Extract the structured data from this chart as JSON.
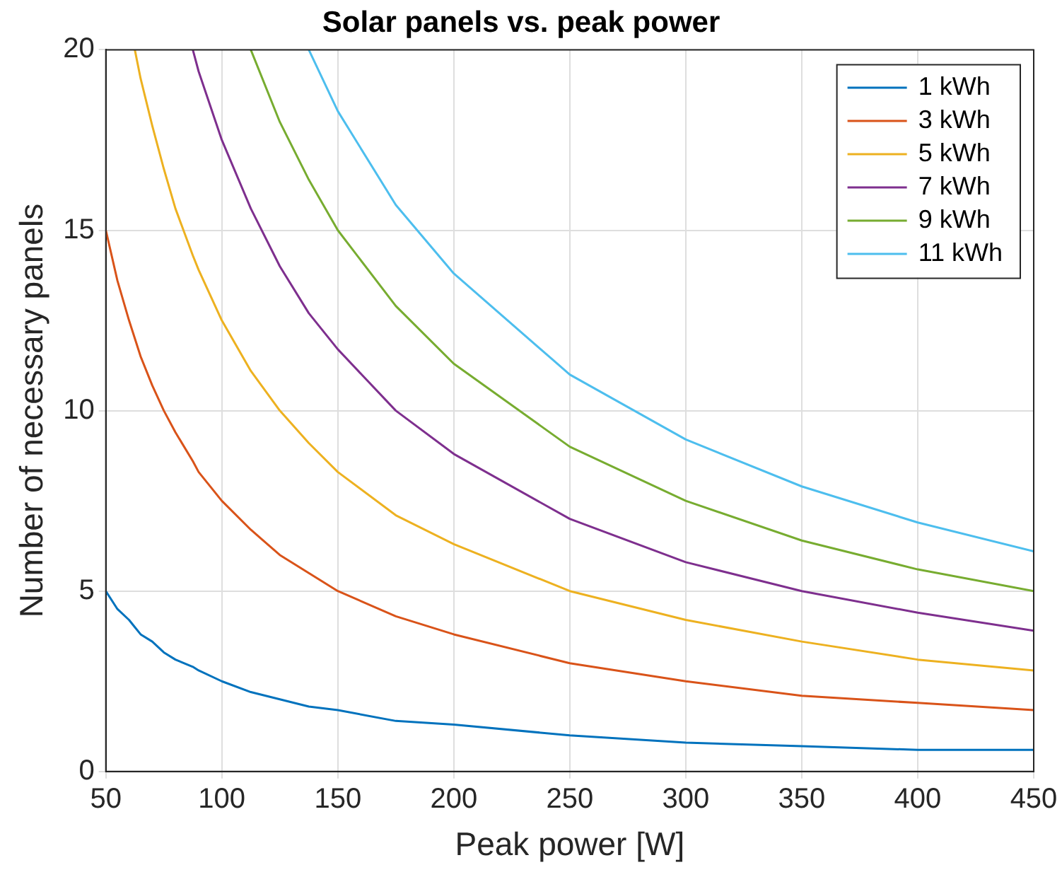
{
  "chart_data": {
    "type": "line",
    "title": "Solar panels vs. peak power",
    "xlabel": "Peak power [W]",
    "ylabel": "Number of necessary panels",
    "xlim": [
      50,
      450
    ],
    "xticks": [
      50,
      100,
      150,
      200,
      250,
      300,
      350,
      400,
      450
    ],
    "ylim": [
      0,
      20
    ],
    "yticks": [
      0,
      5,
      10,
      15,
      20
    ],
    "grid": true,
    "legend": "top right",
    "marker": "none",
    "line_style": "solid",
    "series": [
      {
        "name": "1 kWh",
        "color": "#0072bd",
        "x": [
          50,
          55,
          60,
          62.5,
          65,
          70,
          75,
          80,
          87.5,
          90,
          100,
          112.5,
          125,
          137.5,
          150,
          175,
          200,
          250,
          300,
          350,
          400,
          450
        ],
        "values": [
          5,
          4.5,
          4.2,
          4,
          3.8,
          3.6,
          3.3,
          3.1,
          2.9,
          2.8,
          2.5,
          2.2,
          2,
          1.8,
          1.7,
          1.4,
          1.3,
          1,
          0.8,
          0.7,
          0.6,
          0.6
        ]
      },
      {
        "name": "3 kWh",
        "color": "#d95319",
        "x": [
          50,
          55,
          60,
          62.5,
          65,
          70,
          75,
          80,
          87.5,
          90,
          100,
          112.5,
          125,
          137.5,
          150,
          175,
          200,
          250,
          300,
          350,
          400,
          450
        ],
        "values": [
          15,
          13.6,
          12.5,
          12,
          11.5,
          10.7,
          10,
          9.4,
          8.6,
          8.3,
          7.5,
          6.7,
          6,
          5.5,
          5,
          4.3,
          3.8,
          3,
          2.5,
          2.1,
          1.9,
          1.7
        ]
      },
      {
        "name": "5 kWh",
        "color": "#edb120",
        "x": [
          62.5,
          65,
          70,
          75,
          80,
          87.5,
          90,
          100,
          112.5,
          125,
          137.5,
          150,
          175,
          200,
          250,
          300,
          350,
          400,
          450
        ],
        "values": [
          20,
          19.2,
          17.9,
          16.7,
          15.6,
          14.3,
          13.9,
          12.5,
          11.1,
          10,
          9.1,
          8.3,
          7.1,
          6.3,
          5,
          4.2,
          3.6,
          3.1,
          2.8
        ]
      },
      {
        "name": "7 kWh",
        "color": "#7e2f8e",
        "x": [
          87.5,
          90,
          100,
          112.5,
          125,
          137.5,
          150,
          175,
          200,
          250,
          300,
          350,
          400,
          450
        ],
        "values": [
          20,
          19.4,
          17.5,
          15.6,
          14,
          12.7,
          11.7,
          10,
          8.8,
          7,
          5.8,
          5,
          4.4,
          3.9
        ]
      },
      {
        "name": "9 kWh",
        "color": "#77ac30",
        "x": [
          112.5,
          125,
          137.5,
          150,
          175,
          200,
          250,
          300,
          350,
          400,
          450
        ],
        "values": [
          20,
          18,
          16.4,
          15,
          12.9,
          11.3,
          9,
          7.5,
          6.4,
          5.6,
          5
        ]
      },
      {
        "name": "11 kWh",
        "color": "#4dbeee",
        "x": [
          137.5,
          150,
          175,
          200,
          250,
          300,
          350,
          400,
          450
        ],
        "values": [
          20,
          18.3,
          15.7,
          13.8,
          11,
          9.2,
          7.9,
          6.9,
          6.1
        ]
      }
    ]
  }
}
